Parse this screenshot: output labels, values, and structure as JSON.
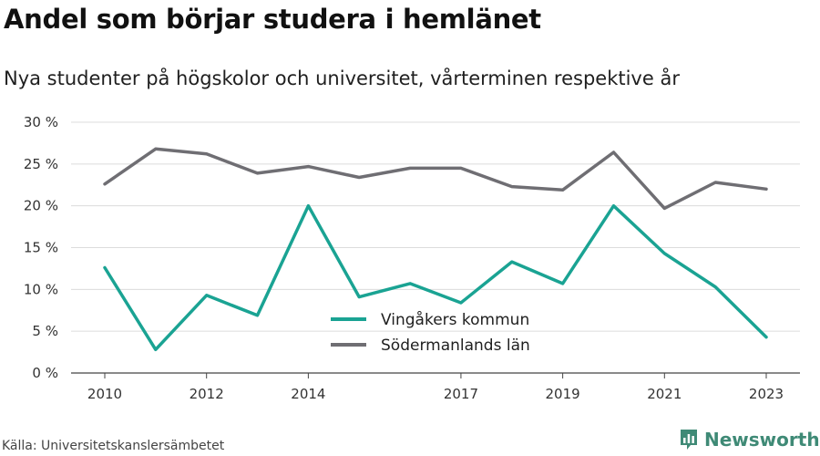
{
  "header": {
    "title": "Andel som börjar studera i hemlänet",
    "subtitle": "Nya studenter på högskolor och universitet, vårterminen respektive år"
  },
  "footer": {
    "source": "Källa: Universitetskanslersämbetet",
    "brand": "Newsworthy",
    "brand_color": "#3f8a76",
    "brand_icon": "bar-chart-icon"
  },
  "chart_data": {
    "type": "line",
    "x": [
      2010,
      2011,
      2012,
      2013,
      2014,
      2015,
      2016,
      2017,
      2018,
      2019,
      2020,
      2021,
      2022,
      2023
    ],
    "x_tick_labels": [
      "2010",
      "2012",
      "2014",
      "2017",
      "2019",
      "2021",
      "2023"
    ],
    "y_tick_labels": [
      "0 %",
      "5 %",
      "10 %",
      "15 %",
      "20 %",
      "25 %",
      "30 %"
    ],
    "ylim": [
      0,
      30
    ],
    "grid": true,
    "legend_position": "center",
    "series": [
      {
        "name": "Vingåkers kommun",
        "color": "#1aa393",
        "values": [
          12.6,
          2.8,
          9.3,
          6.9,
          20.0,
          9.1,
          10.7,
          8.4,
          13.3,
          10.7,
          20.0,
          14.3,
          10.3,
          4.3
        ]
      },
      {
        "name": "Södermanlands län",
        "color": "#6f6e73",
        "values": [
          22.6,
          26.8,
          26.2,
          23.9,
          24.7,
          23.4,
          24.5,
          24.5,
          22.3,
          21.9,
          26.4,
          19.7,
          22.8,
          22.0
        ]
      }
    ]
  }
}
